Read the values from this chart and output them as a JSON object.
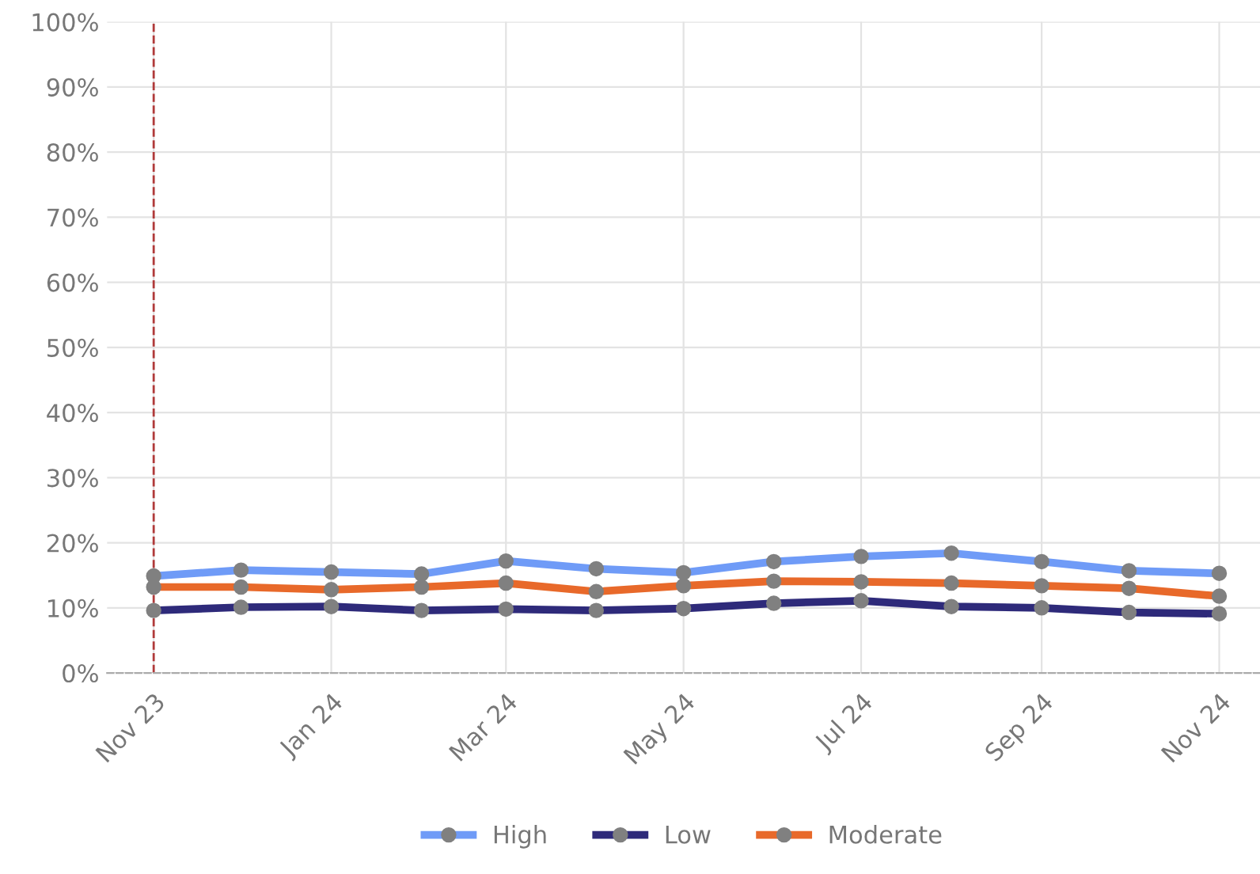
{
  "chart_data": {
    "type": "line",
    "x": [
      "2023-11",
      "2023-12",
      "2024-01",
      "2024-02",
      "2024-03",
      "2024-04",
      "2024-05",
      "2024-06",
      "2024-07",
      "2024-08",
      "2024-09",
      "2024-10",
      "2024-11"
    ],
    "series": [
      {
        "name": "High",
        "color": "#6f9bf7",
        "values": [
          14.9,
          15.8,
          15.5,
          15.2,
          17.2,
          16.0,
          15.4,
          17.1,
          17.9,
          18.4,
          17.1,
          15.7,
          15.3
        ]
      },
      {
        "name": "Low",
        "color": "#2e2a7a",
        "values": [
          9.6,
          10.1,
          10.2,
          9.6,
          9.8,
          9.6,
          9.9,
          10.7,
          11.1,
          10.2,
          10.0,
          9.3,
          9.1
        ]
      },
      {
        "name": "Moderate",
        "color": "#e8692a",
        "values": [
          13.2,
          13.2,
          12.8,
          13.2,
          13.8,
          12.5,
          13.4,
          14.1,
          14.0,
          13.8,
          13.4,
          13.0,
          11.8
        ]
      }
    ],
    "xlim": [
      "2023-10-16",
      "2024-11-15"
    ],
    "xticks": [
      {
        "value": "2023-11",
        "label": "Nov 23"
      },
      {
        "value": "2024-01",
        "label": "Jan 24"
      },
      {
        "value": "2024-03",
        "label": "Mar 24"
      },
      {
        "value": "2024-05",
        "label": "May 24"
      },
      {
        "value": "2024-07",
        "label": "Jul 24"
      },
      {
        "value": "2024-09",
        "label": "Sep 24"
      },
      {
        "value": "2024-11",
        "label": "Nov 24"
      }
    ],
    "ylim": [
      0,
      100
    ],
    "yticks": [
      {
        "value": 0,
        "label": "0%"
      },
      {
        "value": 10,
        "label": "10%"
      },
      {
        "value": 20,
        "label": "20%"
      },
      {
        "value": 30,
        "label": "30%"
      },
      {
        "value": 40,
        "label": "40%"
      },
      {
        "value": 50,
        "label": "50%"
      },
      {
        "value": 60,
        "label": "60%"
      },
      {
        "value": 70,
        "label": "70%"
      },
      {
        "value": 80,
        "label": "80%"
      },
      {
        "value": 90,
        "label": "90%"
      },
      {
        "value": 100,
        "label": "100%"
      }
    ],
    "ref_lines": [
      {
        "axis": "x",
        "value": "2023-11",
        "color": "#b03a3a",
        "line_style": "dashed"
      }
    ],
    "grid": true,
    "legend": "bottom",
    "marker": "circle",
    "line_style": "solid"
  }
}
